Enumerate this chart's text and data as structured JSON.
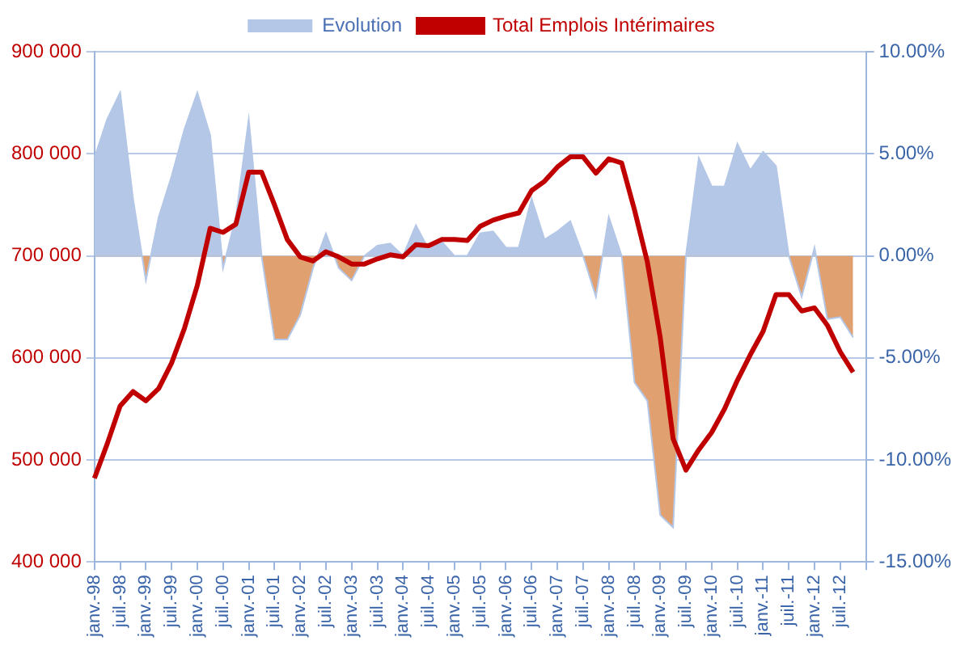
{
  "chart_data": {
    "type": "line",
    "categories": [
      "janv.-98",
      null,
      "juil.-98",
      null,
      "janv.-99",
      null,
      "juil.-99",
      null,
      "janv.-00",
      null,
      "juil.-00",
      null,
      "janv.-01",
      null,
      "juil.-01",
      null,
      "janv.-02",
      null,
      "juil.-02",
      null,
      "janv.-03",
      null,
      "juil.-03",
      null,
      "janv.-04",
      null,
      "juil.-04",
      null,
      "janv.-05",
      null,
      "juil.-05",
      null,
      "janv.-06",
      null,
      "juil.-06",
      null,
      "janv.-07",
      null,
      "juil.-07",
      null,
      "janv.-08",
      null,
      "juil.-08",
      null,
      "janv.-09",
      null,
      "juil.-09",
      null,
      "janv.-10",
      null,
      "juil.-10",
      null,
      "janv.-11",
      null,
      "juil.-11",
      null,
      "janv.-12",
      null,
      "juil.-12",
      null,
      null
    ],
    "series": [
      {
        "name": "Evolution",
        "type": "area",
        "axis": "y2",
        "color": "#b4c7e7",
        "values": [
          4.8,
          6.7,
          8.0,
          2.8,
          -1.2,
          1.9,
          3.9,
          6.2,
          8.0,
          5.9,
          -0.6,
          1.9,
          6.7,
          0,
          -4.1,
          -4.1,
          -2.9,
          -0.6,
          1.1,
          -0.6,
          -1.2,
          0,
          0.5,
          0.6,
          0,
          1.5,
          0.3,
          0.7,
          0,
          0,
          1.1,
          1.2,
          0.4,
          0.4,
          2.8,
          0.8,
          1.2,
          1.7,
          0,
          -2.0,
          1.9,
          0,
          -6.2,
          -7.1,
          -12.7,
          -13.3,
          0,
          4.8,
          3.4,
          3.4,
          5.5,
          4.2,
          5.1,
          4.4,
          0,
          -2.0,
          0.4,
          -3.1,
          -3.0,
          -4.0,
          null
        ]
      },
      {
        "name": "Total Emplois Intérimaires",
        "type": "line",
        "axis": "y",
        "color": "#c00000",
        "values": [
          482000,
          516000,
          553000,
          567000,
          558000,
          570000,
          595000,
          629000,
          671000,
          727000,
          723000,
          731000,
          782000,
          782000,
          750000,
          716000,
          699000,
          695000,
          704000,
          699000,
          692000,
          692000,
          697000,
          701000,
          699000,
          711000,
          710000,
          716000,
          716000,
          715000,
          729000,
          735000,
          739000,
          742000,
          764000,
          773000,
          787000,
          797000,
          797000,
          781000,
          795000,
          791000,
          745000,
          694000,
          620000,
          521000,
          490000,
          510000,
          527000,
          550000,
          578000,
          603000,
          626000,
          662000,
          662000,
          646000,
          649000,
          632000,
          606000,
          586000,
          null
        ]
      }
    ],
    "ylim": [
      400000,
      900000
    ],
    "yticks": [
      {
        "value": 400000,
        "label": "400 000"
      },
      {
        "value": 500000,
        "label": "500 000"
      },
      {
        "value": 600000,
        "label": "600 000"
      },
      {
        "value": 700000,
        "label": "700 000"
      },
      {
        "value": 800000,
        "label": "800 000"
      },
      {
        "value": 900000,
        "label": "900 000"
      }
    ],
    "y2lim": [
      -15,
      10
    ],
    "y2ticks": [
      {
        "value": -15,
        "label": "-15.00%"
      },
      {
        "value": -10,
        "label": "-10.00%"
      },
      {
        "value": -5,
        "label": "-5.00%"
      },
      {
        "value": 0,
        "label": "0.00%"
      },
      {
        "value": 5,
        "label": "5.00%"
      },
      {
        "value": 10,
        "label": "10.00%"
      }
    ],
    "grid": "y",
    "legend": "top",
    "marker": "none",
    "line_style": "solid"
  }
}
